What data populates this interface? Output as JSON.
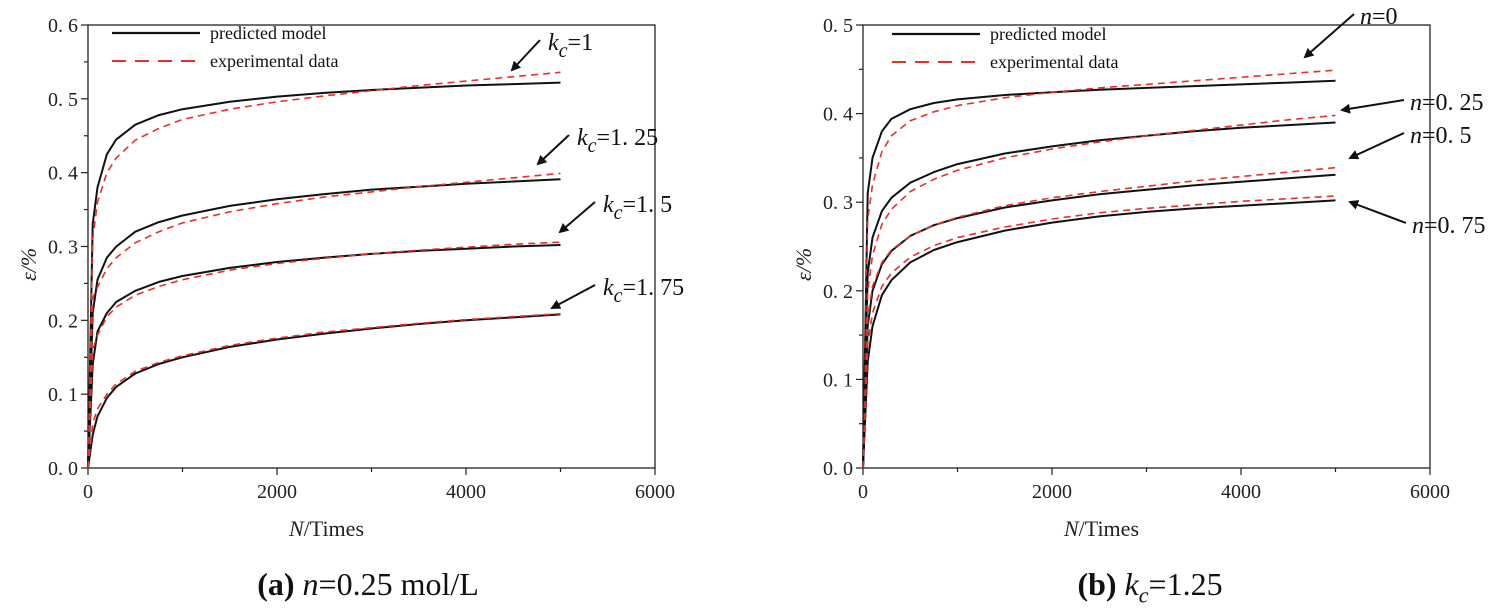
{
  "legend": {
    "model": "predicted model",
    "experimental": "experimental data"
  },
  "colors": {
    "model": "#111111",
    "experimental": "#e8302a",
    "axis": "#222222"
  },
  "chart_data": [
    {
      "type": "line",
      "panel": "a",
      "caption": {
        "label": "(a)",
        "var": "n",
        "rest": "=0.25 mol/L"
      },
      "xlabel": {
        "var": "N",
        "unit": "/Times"
      },
      "ylabel": "ε/%",
      "xlim": [
        0,
        6000
      ],
      "ylim": [
        0,
        0.6
      ],
      "xticks": [
        0,
        2000,
        4000,
        6000
      ],
      "yticks": [
        0.0,
        0.1,
        0.2,
        0.3,
        0.4,
        0.5,
        0.6
      ],
      "ytick_labels": [
        "0. 0",
        "0. 1",
        "0. 2",
        "0. 3",
        "0. 4",
        "0. 5",
        "0. 6"
      ],
      "x": [
        0,
        50,
        100,
        200,
        300,
        500,
        750,
        1000,
        1500,
        2000,
        2500,
        3000,
        3500,
        4000,
        4500,
        5000
      ],
      "series": [
        {
          "name": "k_c=1 predicted model",
          "style": "model",
          "values": [
            0,
            0.33,
            0.38,
            0.425,
            0.445,
            0.465,
            0.478,
            0.486,
            0.496,
            0.503,
            0.508,
            0.512,
            0.515,
            0.518,
            0.52,
            0.522
          ]
        },
        {
          "name": "k_c=1 experimental data",
          "style": "experimental",
          "values": [
            0,
            0.31,
            0.36,
            0.4,
            0.42,
            0.444,
            0.46,
            0.472,
            0.486,
            0.496,
            0.504,
            0.511,
            0.518,
            0.524,
            0.53,
            0.536
          ]
        },
        {
          "name": "k_c=1.25 predicted model",
          "style": "model",
          "values": [
            0,
            0.21,
            0.255,
            0.285,
            0.3,
            0.32,
            0.333,
            0.342,
            0.355,
            0.364,
            0.371,
            0.377,
            0.381,
            0.385,
            0.388,
            0.391
          ]
        },
        {
          "name": "k_c=1.25 experimental data",
          "style": "experimental",
          "values": [
            0,
            0.23,
            0.245,
            0.27,
            0.285,
            0.305,
            0.32,
            0.332,
            0.347,
            0.358,
            0.367,
            0.374,
            0.381,
            0.387,
            0.393,
            0.399
          ]
        },
        {
          "name": "k_c=1.5 predicted model",
          "style": "model",
          "values": [
            0,
            0.14,
            0.185,
            0.21,
            0.225,
            0.24,
            0.252,
            0.26,
            0.271,
            0.279,
            0.285,
            0.29,
            0.294,
            0.297,
            0.3,
            0.302
          ]
        },
        {
          "name": "k_c=1.5 experimental data",
          "style": "experimental",
          "values": [
            0,
            0.16,
            0.18,
            0.205,
            0.218,
            0.234,
            0.246,
            0.255,
            0.268,
            0.277,
            0.284,
            0.29,
            0.295,
            0.299,
            0.303,
            0.306
          ]
        },
        {
          "name": "k_c=1.75 predicted model",
          "style": "model",
          "values": [
            0,
            0.045,
            0.07,
            0.095,
            0.11,
            0.128,
            0.141,
            0.15,
            0.164,
            0.174,
            0.182,
            0.189,
            0.195,
            0.2,
            0.204,
            0.208
          ]
        },
        {
          "name": "k_c=1.75 experimental data",
          "style": "experimental",
          "values": [
            0,
            0.06,
            0.08,
            0.1,
            0.114,
            0.131,
            0.143,
            0.152,
            0.166,
            0.176,
            0.184,
            0.19,
            0.196,
            0.201,
            0.205,
            0.209
          ]
        }
      ],
      "annotations": [
        {
          "var": "k",
          "sub": "c",
          "text": "=1",
          "series_end": 1
        },
        {
          "var": "k",
          "sub": "c",
          "text": "=1. 25",
          "series_end": 3
        },
        {
          "var": "k",
          "sub": "c",
          "text": "=1. 5",
          "series_end": 5
        },
        {
          "var": "k",
          "sub": "c",
          "text": "=1. 75",
          "series_end": 7
        }
      ]
    },
    {
      "type": "line",
      "panel": "b",
      "caption": {
        "label": "(b)",
        "var": "k",
        "sub": "c",
        "rest": "=1.25"
      },
      "xlabel": {
        "var": "N",
        "unit": "/Times"
      },
      "ylabel": "ε/%",
      "xlim": [
        0,
        6000
      ],
      "ylim": [
        0,
        0.5
      ],
      "xticks": [
        0,
        2000,
        4000,
        6000
      ],
      "yticks": [
        0.0,
        0.1,
        0.2,
        0.3,
        0.4,
        0.5
      ],
      "ytick_labels": [
        "0. 0",
        "0. 1",
        "0. 2",
        "0. 3",
        "0. 4",
        "0. 5"
      ],
      "x": [
        0,
        50,
        100,
        200,
        300,
        500,
        750,
        1000,
        1500,
        2000,
        2500,
        3000,
        3500,
        4000,
        4500,
        5000
      ],
      "series": [
        {
          "name": "n=0 predicted model",
          "style": "model",
          "values": [
            0,
            0.31,
            0.35,
            0.38,
            0.394,
            0.405,
            0.412,
            0.416,
            0.421,
            0.424,
            0.427,
            0.429,
            0.431,
            0.433,
            0.435,
            0.437
          ]
        },
        {
          "name": "n=0 experimental data",
          "style": "experimental",
          "values": [
            0,
            0.28,
            0.32,
            0.357,
            0.375,
            0.392,
            0.402,
            0.409,
            0.418,
            0.424,
            0.429,
            0.433,
            0.437,
            0.441,
            0.445,
            0.449
          ]
        },
        {
          "name": "n=0.25 predicted model",
          "style": "model",
          "values": [
            0,
            0.22,
            0.26,
            0.29,
            0.305,
            0.322,
            0.334,
            0.343,
            0.355,
            0.363,
            0.37,
            0.375,
            0.38,
            0.384,
            0.387,
            0.39
          ]
        },
        {
          "name": "n=0.25 experimental data",
          "style": "experimental",
          "values": [
            0,
            0.2,
            0.24,
            0.275,
            0.292,
            0.312,
            0.326,
            0.336,
            0.35,
            0.36,
            0.368,
            0.375,
            0.381,
            0.387,
            0.393,
            0.398
          ]
        },
        {
          "name": "n=0.5 predicted model",
          "style": "model",
          "values": [
            0,
            0.16,
            0.2,
            0.23,
            0.245,
            0.262,
            0.274,
            0.282,
            0.294,
            0.302,
            0.309,
            0.314,
            0.319,
            0.323,
            0.327,
            0.331
          ]
        },
        {
          "name": "n=0.5 experimental data",
          "style": "experimental",
          "values": [
            0,
            0.17,
            0.205,
            0.232,
            0.246,
            0.262,
            0.274,
            0.283,
            0.296,
            0.305,
            0.312,
            0.318,
            0.324,
            0.329,
            0.334,
            0.339
          ]
        },
        {
          "name": "n=0.75 predicted model",
          "style": "model",
          "values": [
            0,
            0.12,
            0.16,
            0.195,
            0.212,
            0.232,
            0.246,
            0.255,
            0.268,
            0.277,
            0.284,
            0.289,
            0.293,
            0.296,
            0.299,
            0.302
          ]
        },
        {
          "name": "n=0.75 experimental data",
          "style": "experimental",
          "values": [
            0,
            0.14,
            0.175,
            0.205,
            0.22,
            0.238,
            0.251,
            0.26,
            0.272,
            0.281,
            0.288,
            0.293,
            0.297,
            0.301,
            0.304,
            0.307
          ]
        }
      ],
      "annotations": [
        {
          "var": "n",
          "text": "=0",
          "series_end": 1
        },
        {
          "var": "n",
          "text": "=0. 25",
          "series_end": 3
        },
        {
          "var": "n",
          "text": "=0. 5",
          "series_end": 5
        },
        {
          "var": "n",
          "text": "=0. 75",
          "series_end": 6
        }
      ]
    }
  ]
}
